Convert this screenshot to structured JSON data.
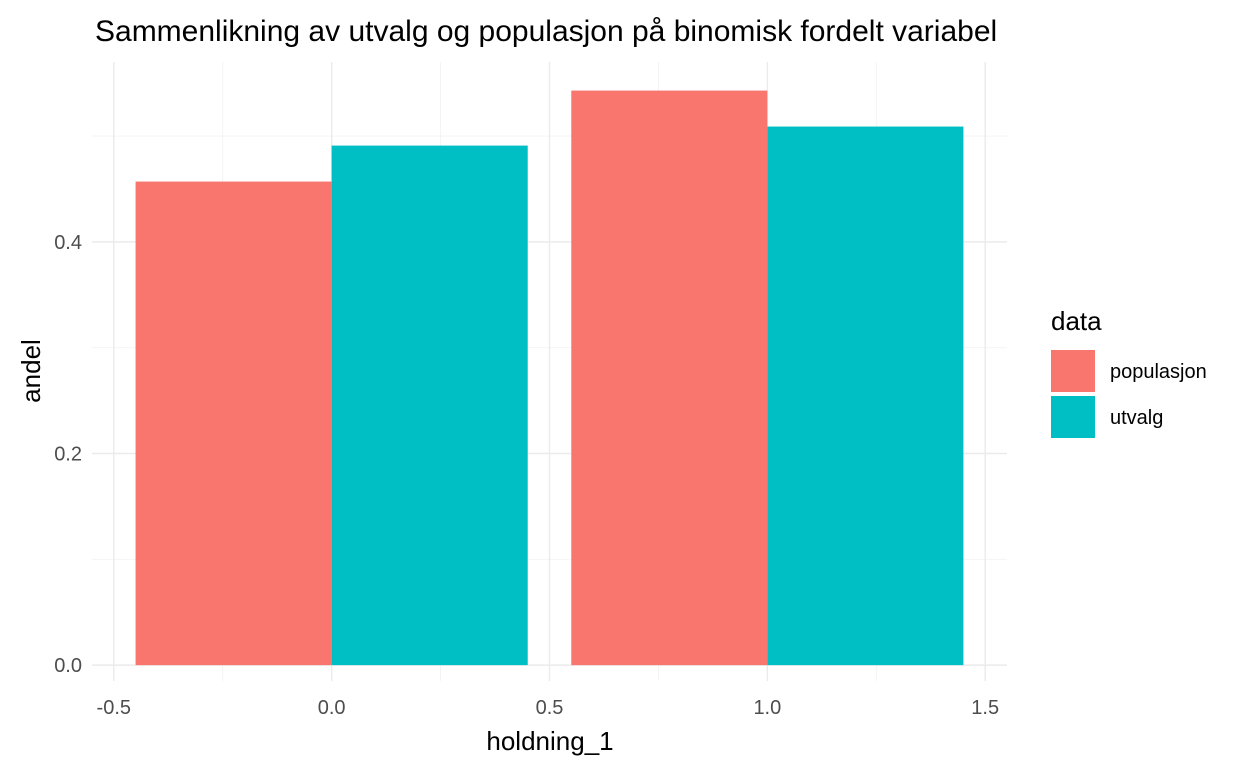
{
  "chart_data": {
    "type": "bar",
    "title": "Sammenlikning av utvalg og populasjon på binomisk fordelt variabel",
    "xlabel": "holdning_1",
    "ylabel": "andel",
    "x_categories": [
      0,
      1
    ],
    "bar_width": 0.9,
    "position": "dodge",
    "series": [
      {
        "name": "populasjon",
        "color": "#F8766D",
        "values": [
          0.457,
          0.543
        ]
      },
      {
        "name": "utvalg",
        "color": "#00BFC4",
        "values": [
          0.491,
          0.509
        ]
      }
    ],
    "xlim": [
      -0.55,
      1.55
    ],
    "ylim": [
      -0.015,
      0.57
    ],
    "x_ticks": [
      -0.5,
      0.0,
      0.5,
      1.0,
      1.5
    ],
    "x_tick_labels": [
      "-0.5",
      "0.0",
      "0.5",
      "1.0",
      "1.5"
    ],
    "y_ticks": [
      0.0,
      0.2,
      0.4
    ],
    "y_tick_labels": [
      "0.0",
      "0.2",
      "0.4"
    ],
    "grid": true,
    "legend": {
      "title": "data",
      "position": "right",
      "entries": [
        "populasjon",
        "utvalg"
      ]
    },
    "theme": "minimal"
  }
}
